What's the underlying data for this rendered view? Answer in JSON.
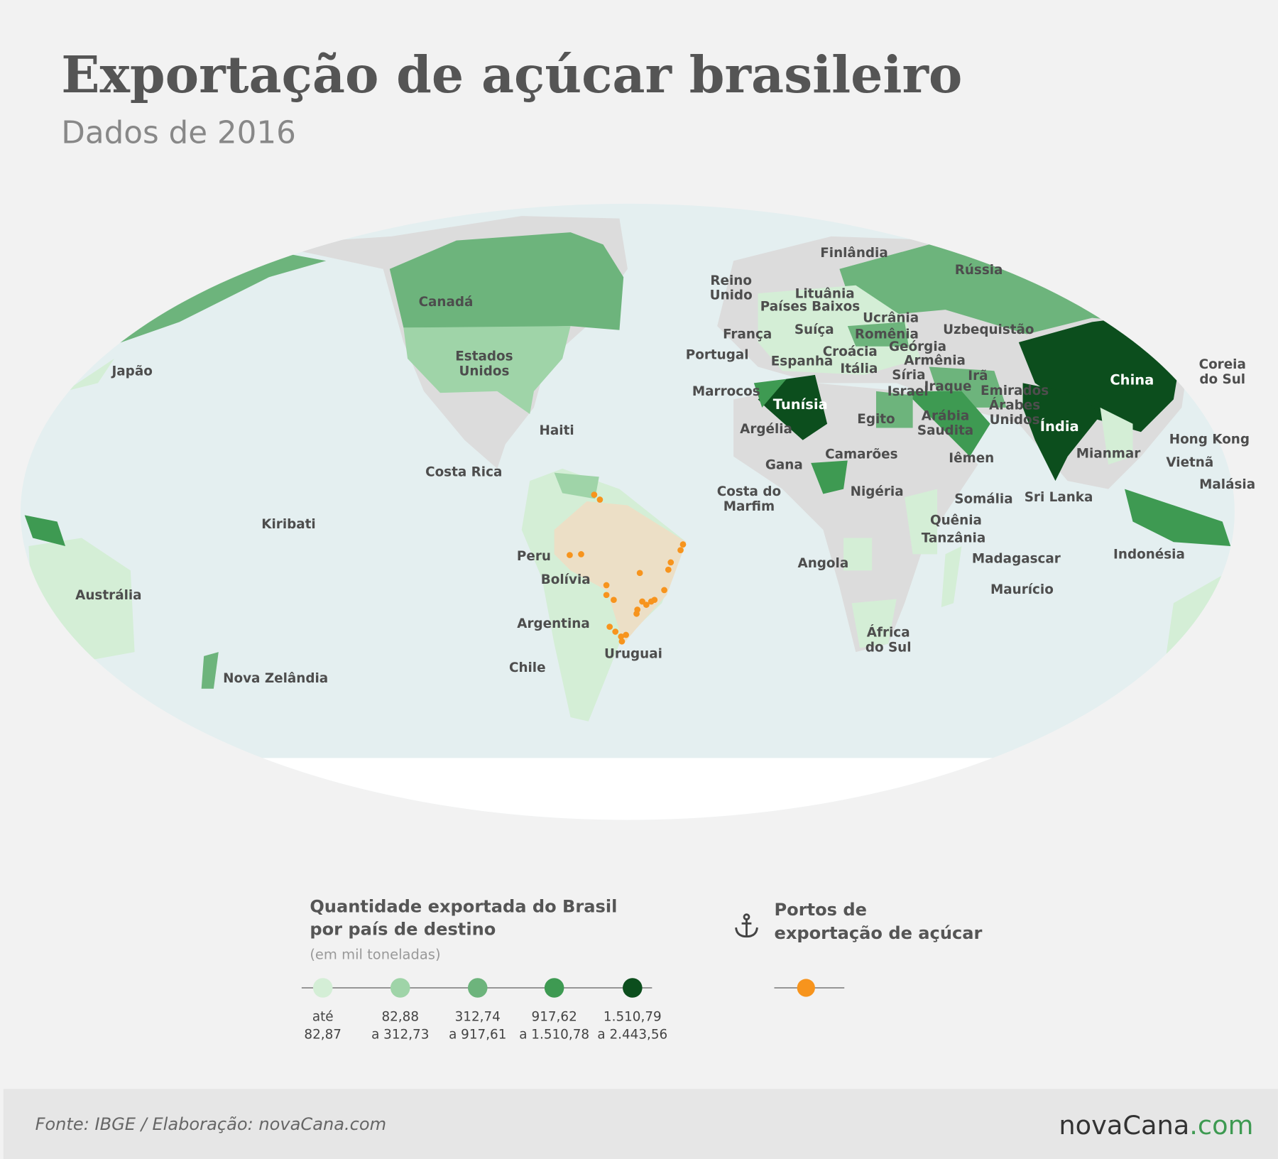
{
  "header": {
    "title": "Exportação de açúcar brasileiro",
    "subtitle": "Dados de 2016"
  },
  "map": {
    "labels": [
      [
        "Japão"
      ],
      [
        "Canadá"
      ],
      [
        "Estados",
        "Unidos"
      ],
      [
        "Haiti"
      ],
      [
        "Costa Rica"
      ],
      [
        "Kiribati"
      ],
      [
        "Austrália"
      ],
      [
        "Nova Zelândia"
      ],
      [
        "Peru"
      ],
      [
        "Bolívia"
      ],
      [
        "Argentina"
      ],
      [
        "Chile"
      ],
      [
        "Uruguai"
      ],
      [
        "Finlândia"
      ],
      [
        "Rússia"
      ],
      [
        "Reino",
        "Unido"
      ],
      [
        "Lituânia"
      ],
      [
        "Países Baixos"
      ],
      [
        "França"
      ],
      [
        "Suíça"
      ],
      [
        "Ucrânia"
      ],
      [
        "Romênia"
      ],
      [
        "Uzbequistão"
      ],
      [
        "Portugal"
      ],
      [
        "Espanha"
      ],
      [
        "Croácia"
      ],
      [
        "Geórgia"
      ],
      [
        "Armênia"
      ],
      [
        "Itália"
      ],
      [
        "Síria"
      ],
      [
        "Irã"
      ],
      [
        "Israel"
      ],
      [
        "Iraque"
      ],
      [
        "Emirados",
        "Árabes",
        "Unidos"
      ],
      [
        "Marrocos"
      ],
      [
        "Tunísia"
      ],
      [
        "Argélia"
      ],
      [
        "Egito"
      ],
      [
        "Arábia",
        "Saudita"
      ],
      [
        "China"
      ],
      [
        "Índia"
      ],
      [
        "Coreia",
        "do Sul"
      ],
      [
        "Hong Kong"
      ],
      [
        "Mianmar"
      ],
      [
        "Vietnã"
      ],
      [
        "Malásia"
      ],
      [
        "Camarões"
      ],
      [
        "Iêmen"
      ],
      [
        "Gana"
      ],
      [
        "Costa do",
        "Marfim"
      ],
      [
        "Nigéria"
      ],
      [
        "Somália"
      ],
      [
        "Sri Lanka"
      ],
      [
        "Quênia"
      ],
      [
        "Tanzânia"
      ],
      [
        "Madagascar"
      ],
      [
        "Indonésia"
      ],
      [
        "Angola"
      ],
      [
        "Maurício"
      ],
      [
        "África",
        "do Sul"
      ]
    ]
  },
  "legend": {
    "title": [
      "Quantidade exportada do Brasil",
      "por país de destino"
    ],
    "unit": "(em mil toneladas)",
    "classes": [
      {
        "color": "#d4eed6",
        "label": [
          "até",
          "82,87"
        ]
      },
      {
        "color": "#9fd4a8",
        "label": [
          "82,88",
          "a 312,73"
        ]
      },
      {
        "color": "#6db47c",
        "label": [
          "312,74",
          "a 917,61"
        ]
      },
      {
        "color": "#3e9a52",
        "label": [
          "917,62",
          "a 1.510,78"
        ]
      },
      {
        "color": "#0c4e1d",
        "label": [
          "1.510,79",
          "a 2.443,56"
        ]
      }
    ],
    "ports": {
      "title": [
        "Portos de",
        "exportação de açúcar"
      ],
      "color": "#f7941d"
    }
  },
  "footer": {
    "source": "Fonte: IBGE / Elaboração: novaCana.com",
    "logo": [
      "novaCana",
      ".com"
    ]
  }
}
